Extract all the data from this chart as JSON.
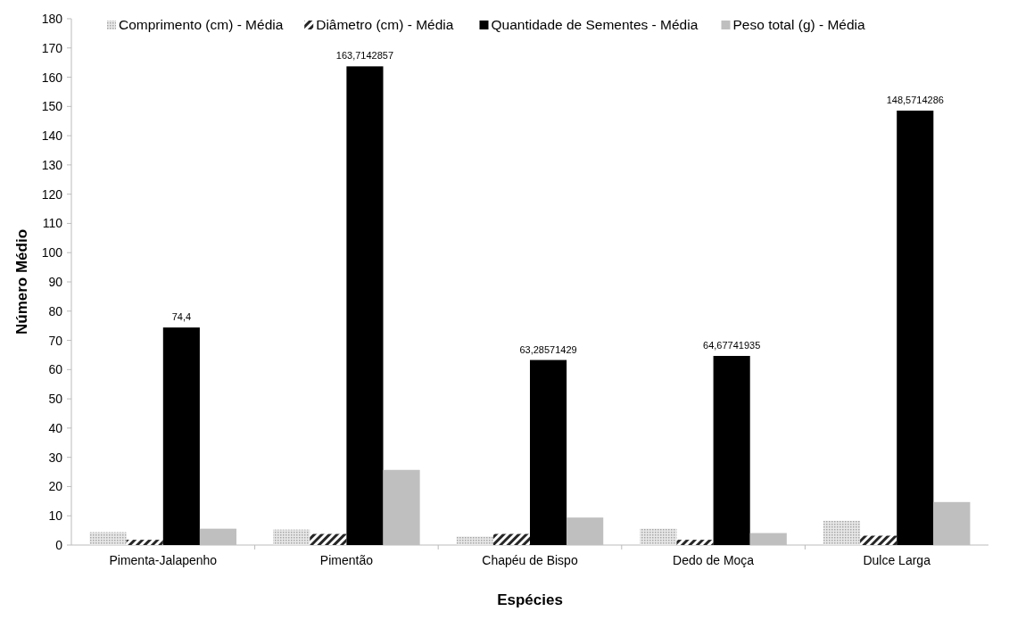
{
  "chart_data": {
    "type": "bar",
    "xlabel": "Espécies",
    "ylabel": "Número Médio",
    "categories": [
      "Pimenta-Jalapenho",
      "Pimentão",
      "Chapéu de Bispo",
      "Dedo de Moça",
      "Dulce Larga"
    ],
    "series": [
      {
        "name": "Comprimento (cm) - Média",
        "color": "#a6a6a6",
        "values": [
          4.4,
          5.3,
          2.9,
          5.6,
          8.3
        ]
      },
      {
        "name": "Diâmetro (cm) - Média",
        "color": "#262626",
        "values": [
          1.8,
          3.8,
          3.8,
          1.8,
          3.2
        ]
      },
      {
        "name": "Quantidade de Sementes - Média",
        "color": "#000000",
        "values": [
          74.4,
          163.7142857,
          63.28571429,
          64.67741935,
          148.5714286
        ],
        "value_labels": [
          "74,4",
          "163,7142857",
          "63,28571429",
          "64,67741935",
          "148,5714286"
        ]
      },
      {
        "name": "Peso total (g) - Média",
        "color": "#bfbfbf",
        "values": [
          5.6,
          25.7,
          9.4,
          4.1,
          14.7
        ]
      }
    ],
    "ylim": [
      0,
      180
    ],
    "yticks": [
      0,
      10,
      20,
      30,
      40,
      50,
      60,
      70,
      80,
      90,
      100,
      110,
      120,
      130,
      140,
      150,
      160,
      170,
      180
    ],
    "legend": "top",
    "grid": false
  }
}
